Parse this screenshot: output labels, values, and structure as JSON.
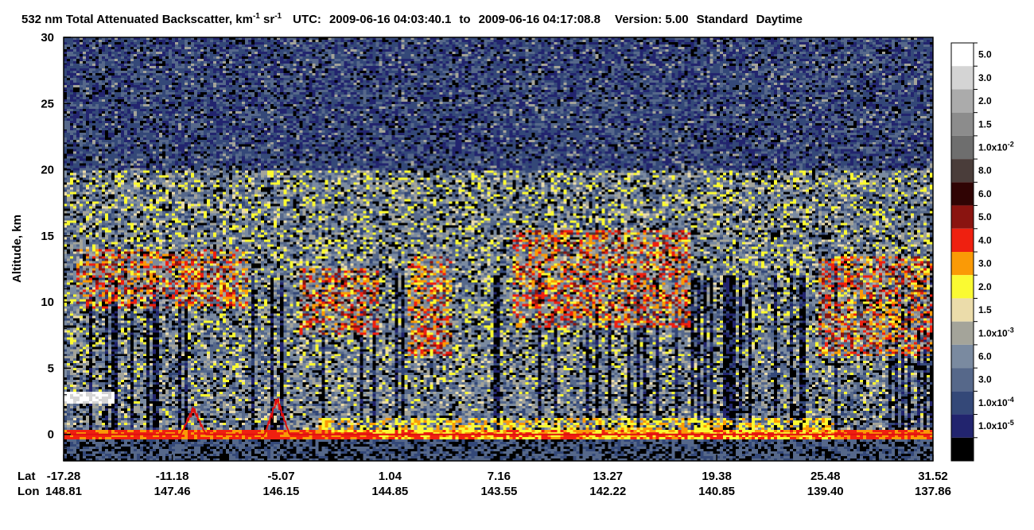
{
  "chart_data": {
    "type": "heatmap",
    "title": {
      "quantity": "532 nm Total Attenuated Backscatter, km",
      "exp1": "-1",
      "unit2": " sr",
      "exp2": "-1",
      "utc_label": "UTC:",
      "start": "2009-06-16 04:03:40.1",
      "to": "to",
      "end": "2009-06-16 04:17:08.8",
      "version_label": "Version: 5.00",
      "product": "Standard",
      "daytime": "Daytime"
    },
    "ylabel": "Altitude, km",
    "ylim": [
      -2,
      30
    ],
    "yticks": [
      0,
      5,
      10,
      15,
      20,
      25,
      30
    ],
    "x_axis": {
      "lat_label": "Lat",
      "lon_label": "Lon",
      "lat": [
        "-17.28",
        "-11.18",
        "-5.07",
        "1.04",
        "7.16",
        "13.27",
        "19.38",
        "25.48",
        "31.52"
      ],
      "lon": [
        "148.81",
        "147.46",
        "146.15",
        "144.85",
        "143.55",
        "142.22",
        "140.85",
        "139.40",
        "137.86"
      ]
    },
    "colorbar": [
      {
        "label": "5.0",
        "color": "#ffffff"
      },
      {
        "label": "3.0",
        "color": "#d4d4d4"
      },
      {
        "label": "2.0",
        "color": "#ababab"
      },
      {
        "label": "1.5",
        "color": "#8c8c8c"
      },
      {
        "label": "1.0x10",
        "exp": "-2",
        "color": "#6e6e6e"
      },
      {
        "label": "8.0",
        "color": "#4a3d3a"
      },
      {
        "label": "6.0",
        "color": "#300404"
      },
      {
        "label": "5.0",
        "color": "#8a1410"
      },
      {
        "label": "4.0",
        "color": "#ef2010"
      },
      {
        "label": "3.0",
        "color": "#fa9a06"
      },
      {
        "label": "2.0",
        "color": "#fafa32"
      },
      {
        "label": "1.5",
        "color": "#ebdcaa"
      },
      {
        "label": "1.0x10",
        "exp": "-3",
        "color": "#a4a49a"
      },
      {
        "label": "6.0",
        "color": "#7a8aa0"
      },
      {
        "label": "3.0",
        "color": "#56688a"
      },
      {
        "label": "1.0x10",
        "exp": "-4",
        "color": "#344878"
      },
      {
        "label": "1.0x10",
        "exp": "-5",
        "color": "#22246e"
      },
      {
        "label": "",
        "color": "#000000"
      }
    ],
    "features": {
      "surface_altitude_km": 0,
      "cloud_layers": [
        {
          "lat_from": -16.5,
          "lat_to": -7.0,
          "alt_from": 9.5,
          "alt_to": 14.0
        },
        {
          "lat_from": -4.0,
          "lat_to": 0.5,
          "alt_from": 7.5,
          "alt_to": 12.5
        },
        {
          "lat_from": 2.0,
          "lat_to": 4.5,
          "alt_from": 6.0,
          "alt_to": 13.5
        },
        {
          "lat_from": 8.0,
          "lat_to": 18.0,
          "alt_from": 8.0,
          "alt_to": 15.5
        },
        {
          "lat_from": 25.0,
          "lat_to": 31.5,
          "alt_from": 6.0,
          "alt_to": 13.5
        }
      ],
      "land_spikes_lat": [
        -10.0,
        -5.3
      ],
      "low_cloud": {
        "lat_from": -17.28,
        "lat_to": -14.5,
        "alt_km": 2.8
      }
    }
  }
}
